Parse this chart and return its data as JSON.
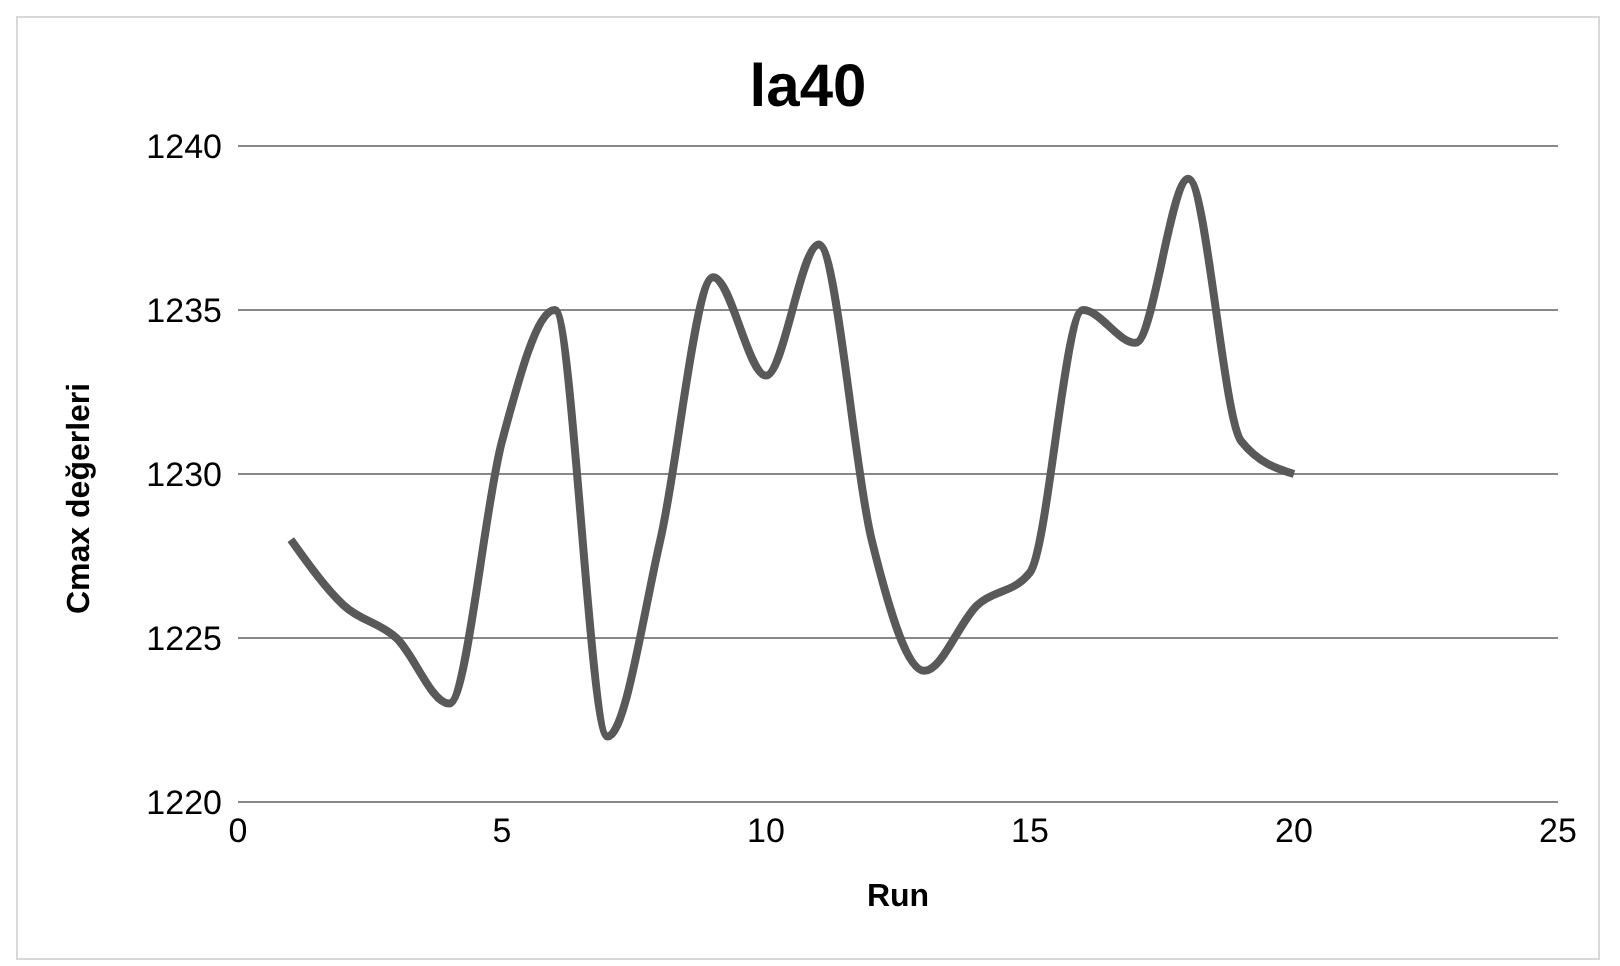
{
  "chart_data": {
    "type": "line",
    "title": "la40",
    "xlabel": "Run",
    "ylabel": "Cmax değerleri",
    "x": [
      1,
      2,
      3,
      4,
      5,
      6,
      7,
      8,
      9,
      10,
      11,
      12,
      13,
      14,
      15,
      16,
      17,
      18,
      19,
      20
    ],
    "series": [
      {
        "color": "#595959",
        "values": [
          1228,
          1226,
          1225,
          1223,
          1231,
          1235,
          1222,
          1228,
          1236,
          1233,
          1237,
          1228,
          1224,
          1226,
          1227,
          1235,
          1234,
          1239,
          1231,
          1230
        ]
      }
    ],
    "xlim": [
      0,
      25
    ],
    "xticks": [
      0,
      5,
      10,
      15,
      20,
      25
    ],
    "ylim": [
      1220,
      1240
    ],
    "yticks": [
      1220,
      1225,
      1230,
      1235,
      1240
    ],
    "grid": "y",
    "legend": false,
    "marker": "none",
    "line_style": "solid"
  }
}
